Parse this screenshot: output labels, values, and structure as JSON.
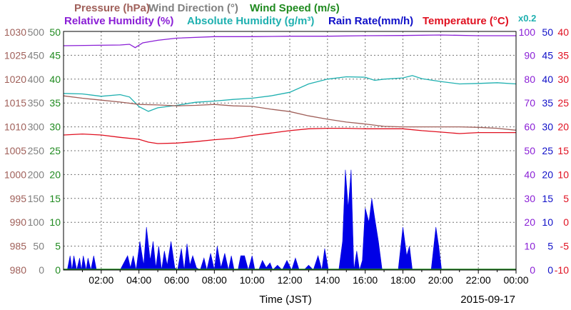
{
  "chart_data": {
    "type": "area",
    "legend": {
      "row1": [
        {
          "label": "Pressure (hPa)",
          "color": "#a0605a"
        },
        {
          "label": "Wind Direction (°)",
          "color": "#808080"
        },
        {
          "label": "Wind Speed (m/s)",
          "color": "#1f8a1f"
        }
      ],
      "row2": [
        {
          "label": "Relative Humidity (%)",
          "color": "#8a1fd6"
        },
        {
          "label": "Absolute Humidity (g/m³)",
          "color": "#1fb0b0"
        },
        {
          "label": "Rain Rate(mm/h)",
          "color": "#1010c8"
        },
        {
          "label": "Temperature (°C)",
          "color": "#e01020"
        }
      ],
      "abs_humidity_scale": "x0.2"
    },
    "xlabel": "Time (JST)",
    "date": "2015-09-17",
    "x_range_hours": [
      0,
      24
    ],
    "x_ticks": [
      "02:00",
      "04:00",
      "06:00",
      "08:00",
      "10:00",
      "12:00",
      "14:00",
      "16:00",
      "18:00",
      "20:00",
      "22:00",
      "00:00"
    ],
    "grid": true,
    "axes": [
      {
        "name": "Pressure (hPa)",
        "side": "left",
        "color": "#a0605a",
        "range": [
          980,
          1030
        ],
        "ticks": [
          980,
          985,
          990,
          995,
          1000,
          1005,
          1010,
          1015,
          1020,
          1025,
          1030
        ]
      },
      {
        "name": "Wind Direction (°)",
        "side": "left",
        "color": "#808080",
        "range": [
          0,
          500
        ],
        "ticks": [
          0,
          50,
          100,
          150,
          200,
          250,
          300,
          350,
          400,
          450,
          500
        ]
      },
      {
        "name": "Wind Speed (m/s)",
        "side": "left",
        "color": "#1f8a1f",
        "range": [
          0,
          50
        ],
        "ticks": [
          0,
          5,
          10,
          15,
          20,
          25,
          30,
          35,
          40,
          45,
          50
        ]
      },
      {
        "name": "Relative Humidity (%)",
        "side": "right",
        "color": "#8a1fd6",
        "range": [
          0,
          100
        ],
        "ticks": [
          0,
          10,
          20,
          30,
          40,
          50,
          60,
          70,
          80,
          90,
          100
        ]
      },
      {
        "name": "Rain Rate (mm/h)",
        "side": "right",
        "color": "#1010c8",
        "range": [
          0,
          50
        ],
        "ticks": [
          0,
          5,
          10,
          15,
          20,
          25,
          30,
          35,
          40,
          45,
          50
        ]
      },
      {
        "name": "Temperature (°C)",
        "side": "right",
        "color": "#e01020",
        "range": [
          -10,
          40
        ],
        "ticks": [
          -10,
          -5,
          0,
          5,
          10,
          15,
          20,
          25,
          30,
          35,
          40
        ]
      }
    ],
    "series": [
      {
        "name": "Relative Humidity (%)",
        "axis": 3,
        "color": "#8a1fd6",
        "style": "line",
        "x": [
          0,
          3,
          3.5,
          3.8,
          4.2,
          5,
          6,
          8,
          10,
          12,
          14,
          16,
          18,
          20,
          22,
          24
        ],
        "y": [
          94,
          94.3,
          94.6,
          93.2,
          95.2,
          96.3,
          97.2,
          97.8,
          97.8,
          98,
          98,
          98.2,
          98.3,
          98.5,
          98.2,
          98.2
        ]
      },
      {
        "name": "Absolute Humidity (g/m³)",
        "axis": 3,
        "color": "#1fb0b0",
        "style": "line",
        "x": [
          0,
          1,
          2,
          3,
          3.5,
          4,
          4.5,
          5,
          6,
          7,
          8,
          9,
          10,
          11,
          12,
          13,
          14,
          15,
          16,
          16.5,
          17,
          18,
          18.5,
          19,
          20,
          21,
          22,
          23,
          24
        ],
        "y": [
          74,
          73.8,
          72.8,
          73.5,
          72.5,
          68.5,
          66.5,
          68,
          69,
          70.3,
          70.8,
          71.5,
          72,
          73,
          74.5,
          78,
          80,
          81,
          80.8,
          79.5,
          80,
          80.5,
          81.5,
          80.2,
          79,
          78,
          78.2,
          78.5,
          78
        ]
      },
      {
        "name": "Pressure (hPa)",
        "axis": 0,
        "color": "#a0605a",
        "style": "line",
        "x": [
          0,
          1,
          2,
          3,
          4,
          5,
          6,
          7,
          8,
          9,
          10,
          11,
          12,
          13,
          14,
          15,
          16,
          17,
          18,
          19,
          20,
          21,
          22,
          23,
          24
        ],
        "y": [
          1016.5,
          1016,
          1015.6,
          1015.2,
          1014.7,
          1014.6,
          1014.4,
          1014.5,
          1014.7,
          1014.4,
          1014.3,
          1013.7,
          1013.2,
          1012.3,
          1011.6,
          1011,
          1010.6,
          1010.1,
          1010,
          1010,
          1010,
          1010,
          1009.9,
          1009.7,
          1009.3
        ]
      },
      {
        "name": "Temperature (°C)",
        "axis": 5,
        "color": "#e01020",
        "style": "line",
        "x": [
          0,
          1,
          2,
          3,
          4,
          4.5,
          5,
          6,
          7,
          8,
          9,
          10,
          11,
          12,
          13,
          14,
          15,
          16,
          17,
          18,
          19,
          20,
          21,
          22,
          23,
          24
        ],
        "y": [
          18.3,
          18.5,
          18.3,
          17.8,
          17.4,
          16.8,
          16.5,
          16.6,
          16.9,
          17.3,
          17.6,
          18.2,
          18.7,
          19.2,
          19.6,
          19.7,
          19.7,
          19.6,
          19.6,
          19.6,
          19.2,
          18.9,
          18.6,
          18.8,
          18.8,
          18.8
        ]
      },
      {
        "name": "Rain Rate (mm/h)",
        "axis": 4,
        "color": "#0000e6",
        "style": "area",
        "x": [
          0.2,
          0.35,
          0.45,
          0.55,
          0.7,
          0.85,
          0.95,
          1.05,
          1.2,
          1.3,
          1.45,
          1.6,
          1.75,
          3.0,
          3.4,
          3.55,
          3.7,
          3.85,
          4.05,
          4.25,
          4.4,
          4.6,
          4.75,
          4.9,
          5.05,
          5.2,
          5.35,
          5.5,
          5.7,
          5.9,
          6.05,
          6.25,
          6.4,
          6.55,
          6.7,
          6.85,
          7.05,
          7.25,
          7.45,
          7.6,
          7.8,
          8.0,
          8.15,
          8.35,
          8.55,
          8.75,
          8.9,
          9.05,
          9.25,
          9.4,
          9.6,
          9.8,
          10.0,
          10.15,
          10.35,
          10.55,
          10.75,
          10.95,
          11.1,
          11.35,
          11.6,
          11.85,
          12.1,
          12.3,
          12.5,
          12.75,
          13.0,
          13.25,
          13.5,
          13.7,
          13.85,
          14.05,
          14.3,
          14.6,
          14.8,
          14.95,
          15.1,
          15.25,
          15.4,
          15.55,
          15.7,
          15.85,
          16.0,
          16.2,
          16.35,
          16.5,
          16.7,
          16.9,
          17.1,
          17.3,
          17.5,
          17.75,
          18.0,
          18.2,
          18.35,
          18.5,
          18.65,
          18.8,
          18.95,
          19.2,
          19.5,
          19.75,
          19.9,
          20.05,
          20.15,
          20.3,
          20.45,
          20.6,
          20.8,
          21.1,
          21.5,
          22.0,
          22.5,
          23.0,
          23.5,
          24.0
        ],
        "y": [
          0,
          3,
          0,
          3,
          0,
          2.5,
          0,
          3,
          0,
          2.5,
          0,
          3,
          0,
          0,
          3,
          0.5,
          3,
          0,
          6,
          1,
          9,
          2,
          6,
          0.5,
          5,
          0,
          4,
          1,
          6,
          0.5,
          0,
          4.5,
          0,
          5.5,
          1,
          3,
          0.5,
          0,
          2.5,
          0,
          3.5,
          0,
          5,
          0.5,
          3.5,
          0,
          3,
          0,
          0,
          3,
          3,
          0,
          3,
          0,
          0,
          2,
          0.5,
          1.5,
          0,
          1,
          0,
          2,
          0,
          2.5,
          0,
          0,
          1,
          0,
          3,
          0,
          4.5,
          0,
          0,
          0,
          6,
          21,
          13,
          21,
          0,
          4,
          0,
          2,
          13,
          10,
          15,
          11,
          6,
          0,
          0,
          0,
          0,
          0,
          9,
          3,
          5,
          0,
          0,
          0,
          0,
          0,
          0,
          9,
          5,
          0,
          0,
          0,
          0,
          0,
          0,
          0,
          0,
          0,
          0,
          0,
          0,
          0
        ]
      }
    ]
  }
}
